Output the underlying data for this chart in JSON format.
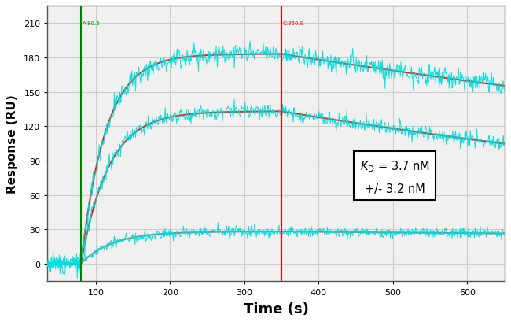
{
  "xlim": [
    35,
    650
  ],
  "ylim": [
    -15,
    225
  ],
  "yticks": [
    0,
    30,
    60,
    90,
    120,
    150,
    180,
    210
  ],
  "xticks": [
    100,
    200,
    300,
    400,
    500,
    600
  ],
  "xlabel": "Time (s)",
  "ylabel": "Response (RU)",
  "green_vline": 80,
  "red_vline": 350,
  "green_label": "A:80.5",
  "red_label": "C:350.9",
  "bg_color": "#f0f0f0",
  "cyan_color": "#00dddd",
  "red_fit_color": "#c0392b",
  "gray_fit_color": "#888888",
  "assoc_start": 80,
  "assoc_end": 350,
  "dissoc_end": 650,
  "curves": [
    {
      "plateau": 183,
      "k_on": 0.03,
      "k_off": 0.00055,
      "noise": 4.5,
      "fit": "red"
    },
    {
      "plateau": 133,
      "k_on": 0.027,
      "k_off": 0.0008,
      "noise": 3.5,
      "fit": "red"
    },
    {
      "plateau": 28,
      "k_on": 0.024,
      "k_off": 0.0002,
      "noise": 2.5,
      "fit": "gray"
    }
  ]
}
